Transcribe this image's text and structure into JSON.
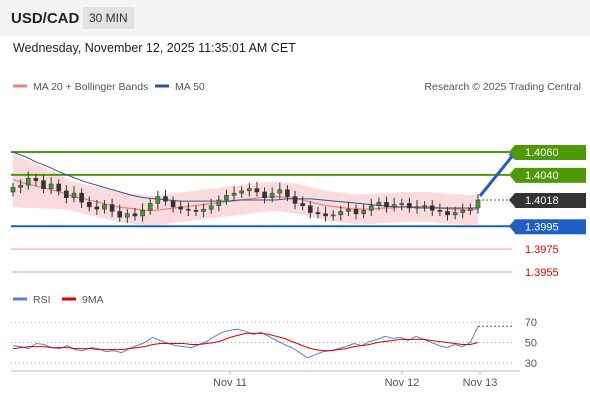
{
  "header": {
    "symbol": "USD/CAD",
    "timeframe": "30 MIN"
  },
  "timestamp": "Wednesday, November 12, 2025 11:35:01 AM CET",
  "price_legend": [
    {
      "label": "MA 20 + Bollinger Bands",
      "color": "#f08080"
    },
    {
      "label": "MA 50",
      "color": "#2f5597"
    }
  ],
  "credit": "Research © 2025 Trading Central",
  "rsi_legend": [
    {
      "label": "RSI",
      "color": "#5b7fd6"
    },
    {
      "label": "9MA",
      "color": "#e00000"
    }
  ],
  "chart_data": [
    {
      "type": "candlestick",
      "panel": "price",
      "y_range": [
        1.3955,
        1.406
      ],
      "x_ticks": [
        "Nov 11",
        "Nov 12",
        "Nov 13"
      ],
      "last_price": {
        "value": "1.4018",
        "color": "#333333"
      },
      "levels": [
        {
          "value": "1.4060",
          "style": "band",
          "color": "#4e9a06"
        },
        {
          "value": "1.4040",
          "style": "band",
          "color": "#4e9a06"
        },
        {
          "value": "1.3995",
          "style": "band",
          "color": "#1f5fc4"
        },
        {
          "value": "1.3975",
          "style": "text",
          "color": "#e00000"
        },
        {
          "value": "1.3955",
          "style": "text",
          "color": "#e00000"
        }
      ],
      "close_series": [
        1.4029,
        1.4031,
        1.4037,
        1.4035,
        1.4028,
        1.4032,
        1.4026,
        1.402,
        1.4024,
        1.4016,
        1.4012,
        1.401,
        1.4014,
        1.4008,
        1.4003,
        1.4006,
        1.4004,
        1.4009,
        1.4015,
        1.4021,
        1.4017,
        1.4012,
        1.401,
        1.4009,
        1.4008,
        1.401,
        1.4013,
        1.4018,
        1.4022,
        1.4024,
        1.4026,
        1.4028,
        1.4025,
        1.402,
        1.4024,
        1.4027,
        1.4021,
        1.4015,
        1.4013,
        1.4007,
        1.4006,
        1.4004,
        1.4005,
        1.4008,
        1.401,
        1.4006,
        1.4009,
        1.4013,
        1.4016,
        1.4012,
        1.4014,
        1.4015,
        1.4011,
        1.4012,
        1.4013,
        1.4009,
        1.4008,
        1.4005,
        1.4007,
        1.4009,
        1.4011,
        1.4018
      ],
      "ma20": [
        1.4036,
        1.4033,
        1.4031,
        1.4029,
        1.4027,
        1.4025,
        1.4022,
        1.402,
        1.4018,
        1.4016,
        1.4014,
        1.4012,
        1.4011,
        1.401,
        1.4009,
        1.4009,
        1.401,
        1.4011,
        1.4012,
        1.4013,
        1.4014,
        1.4015,
        1.4016,
        1.4017,
        1.4018,
        1.4019,
        1.402,
        1.4021,
        1.4021,
        1.402,
        1.4019,
        1.4017,
        1.4015,
        1.4013,
        1.4012,
        1.4011,
        1.401,
        1.401,
        1.401,
        1.4011,
        1.4011,
        1.4012,
        1.4012,
        1.4012,
        1.4012,
        1.4011,
        1.401,
        1.401,
        1.4009,
        1.401
      ],
      "ma50": [
        1.406,
        1.4056,
        1.4051,
        1.4047,
        1.4042,
        1.4038,
        1.4034,
        1.4031,
        1.4028,
        1.4025,
        1.4022,
        1.402,
        1.4019,
        1.4018,
        1.4017,
        1.4017,
        1.4017,
        1.4017,
        1.4017,
        1.4018,
        1.4018,
        1.4018,
        1.4018,
        1.4019,
        1.4019,
        1.4019,
        1.4018,
        1.4017,
        1.4016,
        1.4015,
        1.4014,
        1.4013,
        1.4012,
        1.4012,
        1.4011,
        1.4011,
        1.4011,
        1.4011,
        1.4011,
        1.4011
      ]
    },
    {
      "type": "line",
      "panel": "rsi",
      "y_range": [
        20,
        80
      ],
      "y_ticks": [
        "70",
        "50",
        "30"
      ],
      "series": [
        {
          "name": "RSI",
          "values": [
            47,
            46,
            44,
            49,
            48,
            45,
            44,
            47,
            43,
            42,
            45,
            44,
            41,
            42,
            40,
            44,
            47,
            50,
            55,
            52,
            49,
            47,
            46,
            45,
            48,
            51,
            56,
            60,
            62,
            63,
            61,
            58,
            60,
            56,
            52,
            48,
            45,
            40,
            35,
            38,
            41,
            42,
            44,
            46,
            49,
            47,
            51,
            53,
            56,
            54,
            55,
            52,
            56,
            53,
            50,
            47,
            45,
            48,
            46,
            50,
            66
          ]
        },
        {
          "name": "9MA",
          "values": [
            44,
            45,
            46,
            46,
            46,
            45,
            45,
            45,
            44,
            44,
            44,
            43,
            43,
            43,
            43,
            44,
            45,
            46,
            48,
            49,
            49,
            49,
            49,
            48,
            48,
            49,
            50,
            52,
            55,
            57,
            59,
            59,
            59,
            58,
            56,
            54,
            51,
            48,
            45,
            43,
            42,
            42,
            43,
            44,
            46,
            47,
            48,
            50,
            51,
            52,
            53,
            53,
            53,
            53,
            52,
            51,
            50,
            49,
            48,
            48,
            50
          ]
        }
      ]
    }
  ]
}
